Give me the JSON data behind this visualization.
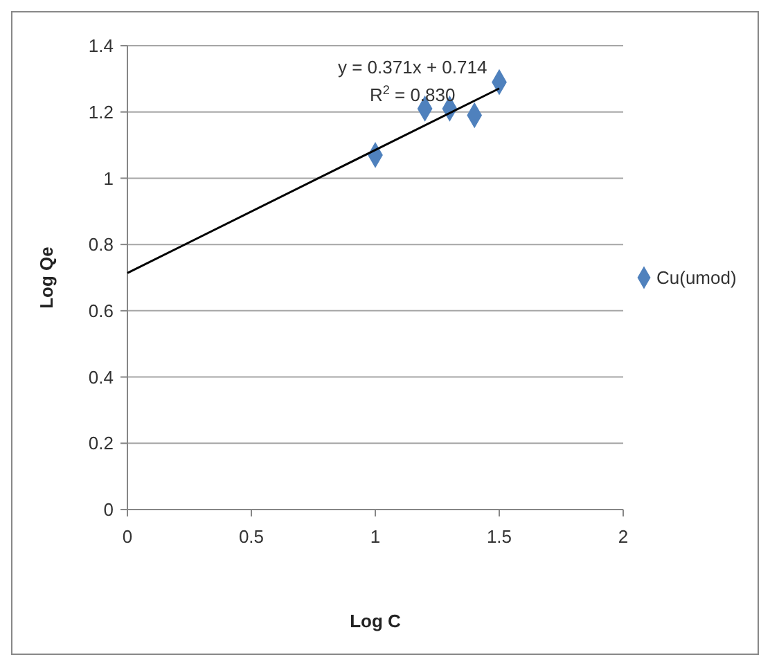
{
  "chart_data": {
    "type": "scatter",
    "xlabel": "Log C",
    "ylabel": "Log Qe",
    "xlim": [
      0,
      2
    ],
    "xticks": [
      0,
      0.5,
      1,
      1.5,
      2
    ],
    "ylim": [
      0,
      1.4
    ],
    "yticks": [
      0,
      0.2,
      0.4,
      0.6,
      0.8,
      1,
      1.2,
      1.4
    ],
    "grid": "y",
    "legend": "right",
    "marker": "diamond",
    "series": [
      {
        "name": "Cu(umod)",
        "color": "#4f81bd",
        "x": [
          1,
          1.2,
          1.3,
          1.4,
          1.5
        ],
        "values": [
          1.07,
          1.21,
          1.21,
          1.19,
          1.29
        ]
      },
      {
        "type": "line",
        "marker": "none",
        "color": "#000000",
        "x": [
          0,
          1.5
        ],
        "values": [
          0.714,
          1.271
        ]
      }
    ],
    "annotations": [
      "y = 0.371x + 0.714",
      "R$^{2}$ = 0.830"
    ]
  }
}
